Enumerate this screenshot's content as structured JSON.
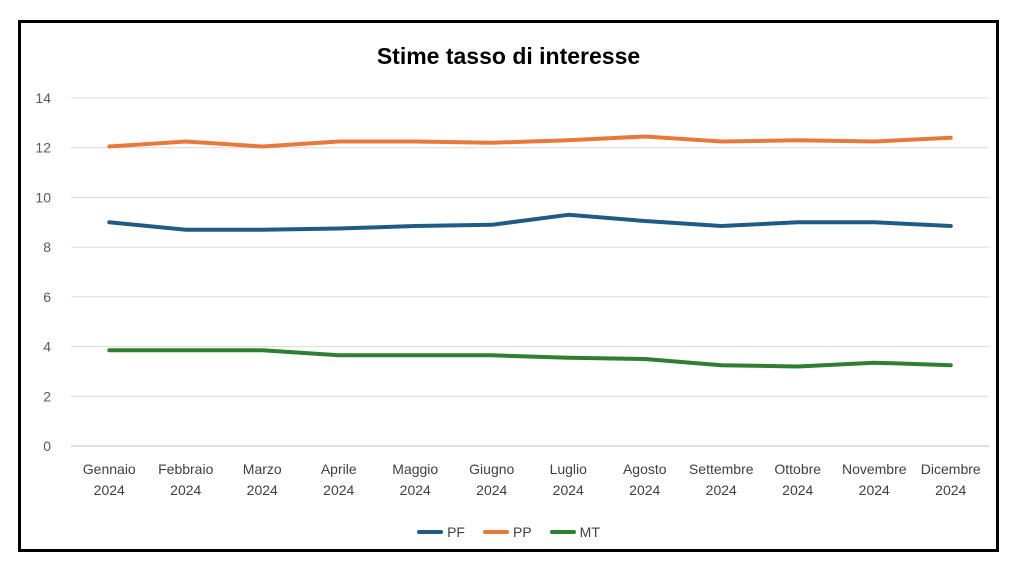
{
  "chart_data": {
    "type": "line",
    "title": "Stime tasso di interesse",
    "xlabel": "",
    "ylabel": "",
    "ylim": [
      0,
      14
    ],
    "yticks": [
      0,
      2,
      4,
      6,
      8,
      10,
      12,
      14
    ],
    "grid": true,
    "legend_position": "bottom",
    "categories": [
      [
        "Gennaio",
        "2024"
      ],
      [
        "Febbraio",
        "2024"
      ],
      [
        "Marzo",
        "2024"
      ],
      [
        "Aprile",
        "2024"
      ],
      [
        "Maggio",
        "2024"
      ],
      [
        "Giugno",
        "2024"
      ],
      [
        "Luglio",
        "2024"
      ],
      [
        "Agosto",
        "2024"
      ],
      [
        "Settembre",
        "2024"
      ],
      [
        "Ottobre",
        "2024"
      ],
      [
        "Novembre",
        "2024"
      ],
      [
        "Dicembre",
        "2024"
      ]
    ],
    "series": [
      {
        "name": "PF",
        "color": "#1F5C85",
        "values": [
          9.0,
          8.7,
          8.7,
          8.75,
          8.85,
          8.9,
          9.3,
          9.05,
          8.85,
          9.0,
          9.0,
          8.85
        ]
      },
      {
        "name": "PP",
        "color": "#E8793A",
        "values": [
          12.05,
          12.25,
          12.05,
          12.25,
          12.25,
          12.2,
          12.3,
          12.45,
          12.25,
          12.3,
          12.25,
          12.4
        ]
      },
      {
        "name": "MT",
        "color": "#2E7F2E",
        "values": [
          3.85,
          3.85,
          3.85,
          3.65,
          3.65,
          3.65,
          3.55,
          3.5,
          3.25,
          3.2,
          3.35,
          3.25
        ]
      }
    ]
  }
}
